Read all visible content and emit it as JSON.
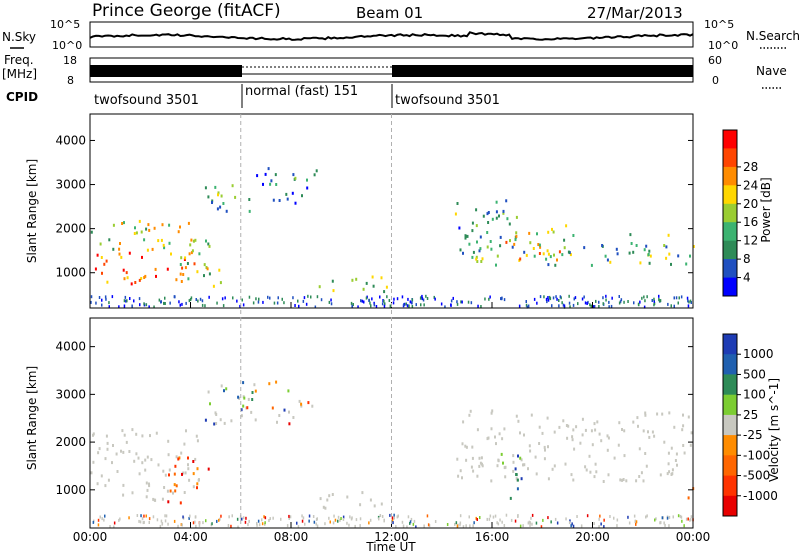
{
  "header": {
    "station": "Prince George (fitACF)",
    "beam": "Beam 01",
    "date": "27/Mar/2013"
  },
  "noise_panel": {
    "left_label": "N.Sky",
    "right_label": "N.Search",
    "left_ticks": [
      "10^5",
      "10^0"
    ],
    "right_ticks": [
      "10^5",
      "10^0"
    ]
  },
  "freq_panel": {
    "left_label_top": "Freq.",
    "left_label_bottom": "[MHz]",
    "left_ticks": [
      "18",
      "8"
    ],
    "right_label": "Nave",
    "right_ticks": [
      "60",
      "0"
    ]
  },
  "cpid": {
    "label": "CPID",
    "segments": [
      {
        "label": "twofsound 3501",
        "start": 0,
        "end": 6
      },
      {
        "label": "normal (fast) 151",
        "start": 6,
        "end": 12
      },
      {
        "label": "twofsound 3501",
        "start": 12,
        "end": 24
      }
    ]
  },
  "colors": {
    "frame": "#000000",
    "boundary_line": "#b0b0b0",
    "ground_scatter": "#c8c8c0"
  },
  "chart_data": [
    {
      "type": "heatmap",
      "name": "power",
      "ylabel": "Slant Range [km]",
      "ylim": [
        200,
        4600
      ],
      "yticks": [
        "1000",
        "2000",
        "3000",
        "4000"
      ],
      "xlim": [
        0,
        24
      ],
      "colorbar": {
        "label": "Power [dB]",
        "ticks": [
          "4",
          "8",
          "12",
          "16",
          "20",
          "24",
          "28"
        ],
        "colors": [
          "#0000ff",
          "#2050c0",
          "#2e8b57",
          "#3cb371",
          "#9acd32",
          "#ffd700",
          "#ff8c00",
          "#ff4500",
          "#ff0000"
        ]
      },
      "features": [
        {
          "t0": 0.0,
          "t1": 4.2,
          "r0": 750,
          "r1": 1500,
          "level": 0.85
        },
        {
          "t0": 0.0,
          "t1": 4.2,
          "r0": 1500,
          "r1": 2200,
          "level": 0.55
        },
        {
          "t0": 3.5,
          "t1": 5.2,
          "r0": 700,
          "r1": 1800,
          "level": 0.5
        },
        {
          "t0": 4.5,
          "t1": 6.5,
          "r0": 2400,
          "r1": 3100,
          "level": 0.35
        },
        {
          "t0": 6.5,
          "t1": 9.0,
          "r0": 2600,
          "r1": 3400,
          "level": 0.25
        },
        {
          "t0": 9.0,
          "t1": 11.8,
          "r0": 600,
          "r1": 1000,
          "level": 0.45
        },
        {
          "t0": 14.5,
          "t1": 24.0,
          "r0": 1200,
          "r1": 1900,
          "level": 0.4
        },
        {
          "t0": 16.5,
          "t1": 19.0,
          "r0": 1300,
          "r1": 2100,
          "level": 0.6
        },
        {
          "t0": 14.5,
          "t1": 17.0,
          "r0": 1800,
          "r1": 2700,
          "level": 0.35
        }
      ]
    },
    {
      "type": "heatmap",
      "name": "velocity",
      "ylabel": "Slant Range [km]",
      "xlabel": "Time UT",
      "ylim": [
        200,
        4600
      ],
      "yticks": [
        "1000",
        "2000",
        "3000",
        "4000"
      ],
      "xlim": [
        0,
        24
      ],
      "xticks": [
        "00:00",
        "04:00",
        "08:00",
        "12:00",
        "16:00",
        "20:00",
        "00:00"
      ],
      "colorbar": {
        "label": "Velocity [m s^-1]",
        "ticks": [
          "1000",
          "500",
          "100",
          "25",
          "-25",
          "-100",
          "-500",
          "-1000"
        ],
        "colors": [
          "#1e3cb4",
          "#2060b0",
          "#2e8b57",
          "#7ccd32",
          "#c8c8c0",
          "#ff8c00",
          "#ff6600",
          "#ff3300",
          "#e80000"
        ]
      },
      "features": [
        {
          "t0": 0.0,
          "t1": 4.5,
          "r0": 800,
          "r1": 2300,
          "kind": "ground"
        },
        {
          "t0": 3.0,
          "t1": 4.7,
          "r0": 700,
          "r1": 1700,
          "kind": "negative"
        },
        {
          "t0": 4.5,
          "t1": 9.0,
          "r0": 2400,
          "r1": 3300,
          "kind": "mixed"
        },
        {
          "t0": 9.0,
          "t1": 11.8,
          "r0": 600,
          "r1": 1000,
          "kind": "ground"
        },
        {
          "t0": 14.5,
          "t1": 24.0,
          "r0": 1200,
          "r1": 2700,
          "kind": "ground"
        },
        {
          "t0": 16.3,
          "t1": 17.2,
          "r0": 800,
          "r1": 1900,
          "kind": "positive"
        },
        {
          "t0": 23.5,
          "t1": 24.0,
          "r0": 700,
          "r1": 1100,
          "kind": "negative"
        }
      ]
    }
  ]
}
